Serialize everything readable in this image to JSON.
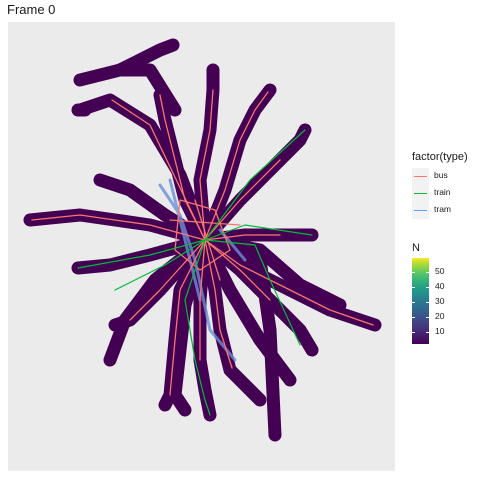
{
  "title": "Frame 0",
  "legend_type": {
    "title": "factor(type)",
    "items": [
      {
        "label": "bus",
        "color": "#f8766d"
      },
      {
        "label": "train",
        "color": "#00ba38"
      },
      {
        "label": "tram",
        "color": "#619cff"
      }
    ]
  },
  "legend_n": {
    "title": "N",
    "ticks": [
      "50",
      "40",
      "30",
      "20",
      "10"
    ],
    "scale": "viridis"
  },
  "colors": {
    "panel_background": "#ebebeb",
    "stop_buffer": "#440154",
    "bus": "#f8766d",
    "train": "#00ba38",
    "tram": "#619cff"
  }
}
